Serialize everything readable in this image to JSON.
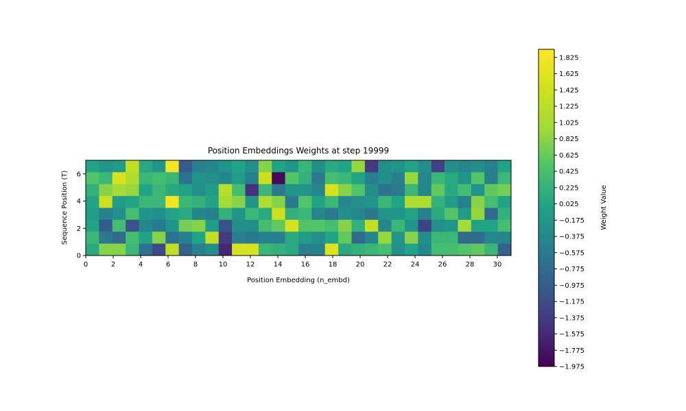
{
  "chart_data": {
    "type": "heatmap",
    "title": "Position Embeddings Weights at step 19999",
    "xlabel": "Position Embedding (n_embd)",
    "ylabel": "Sequence Position (T)",
    "colorbar_label": "Weight Value",
    "colormap": "viridis",
    "n_cols": 32,
    "n_rows": 8,
    "xlim": [
      0,
      31
    ],
    "ylim": [
      0,
      7
    ],
    "x_ticks": [
      0,
      2,
      4,
      6,
      8,
      10,
      12,
      14,
      16,
      18,
      20,
      22,
      24,
      26,
      28,
      30
    ],
    "y_ticks": [
      0,
      2,
      4,
      6
    ],
    "vmin": -1.975,
    "vmax": 1.925,
    "colorbar_ticks": [
      "1.825",
      "1.625",
      "1.425",
      "1.225",
      "1.025",
      "0.825",
      "0.625",
      "0.425",
      "0.225",
      "0.025",
      "−0.175",
      "−0.375",
      "−0.575",
      "−0.775",
      "−0.975",
      "−1.175",
      "−1.375",
      "−1.575",
      "−1.775",
      "−1.975"
    ],
    "grid": false,
    "values_row_order": "top-to-bottom (row 7 first, row 0 last)",
    "values": [
      [
        0.0,
        -0.2,
        -0.1,
        1.3,
        0.1,
        -0.2,
        1.8,
        -1.0,
        -0.5,
        -0.4,
        -0.2,
        0.0,
        -0.3,
        0.8,
        0.0,
        -0.2,
        0.3,
        -0.3,
        0.1,
        0.0,
        0.9,
        -1.4,
        -0.3,
        -0.2,
        0.0,
        -0.3,
        -1.3,
        -0.3,
        -0.4,
        -0.3,
        -0.5,
        0.0
      ],
      [
        0.5,
        0.3,
        1.5,
        1.1,
        0.3,
        0.4,
        0.3,
        -0.7,
        -0.2,
        -0.3,
        -0.4,
        -0.1,
        -0.5,
        1.4,
        -1.9,
        0.5,
        0.2,
        -0.6,
        0.4,
        0.3,
        0.0,
        -0.5,
        -0.3,
        -0.5,
        0.9,
        -0.4,
        0.3,
        0.1,
        -0.2,
        0.5,
        -0.5,
        0.3
      ],
      [
        0.2,
        0.8,
        1.0,
        0.9,
        0.0,
        0.3,
        0.1,
        0.0,
        -0.3,
        -0.1,
        1.2,
        0.4,
        -1.5,
        0.3,
        -0.6,
        -0.2,
        -0.2,
        -0.4,
        1.5,
        0.8,
        0.5,
        -0.3,
        -0.7,
        -0.6,
        0.3,
        -0.4,
        0.6,
        0.1,
        0.4,
        -0.2,
        0.6,
        0.7
      ],
      [
        0.0,
        1.4,
        -0.1,
        0.0,
        0.3,
        0.3,
        1.8,
        0.3,
        0.2,
        0.0,
        1.0,
        0.8,
        -0.2,
        1.1,
        0.8,
        -0.6,
        0.5,
        0.0,
        0.3,
        -0.4,
        -0.3,
        -0.2,
        0.3,
        0.0,
        1.1,
        1.1,
        0.2,
        -0.1,
        -0.5,
        0.8,
        0.4,
        0.0
      ],
      [
        -0.1,
        -0.5,
        -0.3,
        0.4,
        -0.2,
        -0.3,
        0.0,
        0.1,
        -0.4,
        -0.5,
        0.2,
        -0.2,
        0.3,
        0.1,
        1.4,
        0.2,
        0.3,
        -0.4,
        -0.6,
        -0.3,
        -0.4,
        -0.6,
        -0.2,
        -0.2,
        0.0,
        -0.5,
        0.1,
        0.5,
        -0.1,
        0.9,
        -0.8,
        0.2
      ],
      [
        0.0,
        -1.0,
        0.4,
        -1.1,
        -0.4,
        -0.6,
        -0.2,
        0.7,
        0.8,
        -0.1,
        -1.1,
        -0.3,
        -0.3,
        0.4,
        0.6,
        1.5,
        0.5,
        0.5,
        0.4,
        0.8,
        0.2,
        1.3,
        -0.4,
        0.3,
        -0.2,
        -1.3,
        -0.3,
        -0.2,
        1.0,
        0.0,
        0.0,
        0.4
      ],
      [
        0.3,
        -0.6,
        -0.8,
        0.4,
        0.0,
        0.8,
        -0.7,
        -0.5,
        0.0,
        1.3,
        -1.4,
        -0.5,
        -0.6,
        -0.5,
        -0.5,
        0.1,
        -0.1,
        -0.3,
        0.0,
        0.6,
        -0.8,
        -0.4,
        0.9,
        -0.2,
        0.8,
        -0.3,
        0.3,
        0.3,
        -0.8,
        -0.8,
        -0.4,
        -0.4
      ],
      [
        0.1,
        0.8,
        0.8,
        0.3,
        -0.7,
        -1.2,
        1.3,
        -0.9,
        -0.5,
        -0.3,
        -1.6,
        1.5,
        1.5,
        0.3,
        0.2,
        0.1,
        -0.5,
        -0.5,
        1.6,
        0.1,
        0.2,
        0.3,
        0.4,
        -0.3,
        0.0,
        -0.4,
        0.4,
        0.4,
        0.5,
        0.6,
        0.3,
        -0.9
      ]
    ]
  }
}
